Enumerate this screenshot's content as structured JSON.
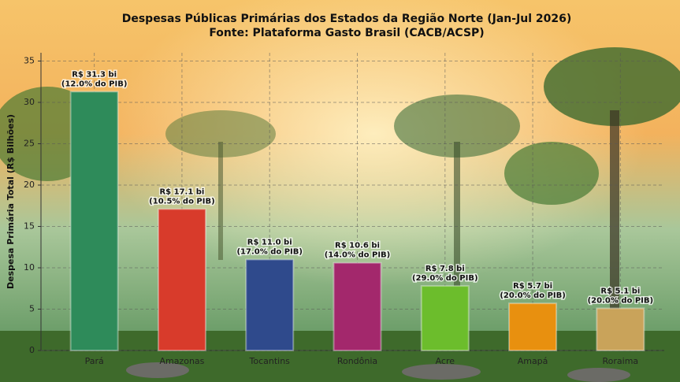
{
  "chart_data": {
    "type": "bar",
    "title": "Despesas Públicas Primárias dos Estados da Região Norte (Jan-Jul 2026)",
    "subtitle": "Fonte: Plataforma Gasto Brasil (CACB/ACSP)",
    "y_label": "Despesa Primária Total (R$ Bilhões)",
    "categories": [
      "Pará",
      "Amazonas",
      "Tocantins",
      "Rondônia",
      "Acre",
      "Amapá",
      "Roraima"
    ],
    "values": [
      31.3,
      17.1,
      11.0,
      10.6,
      7.8,
      5.7,
      5.1
    ],
    "value_labels": [
      "R$ 31.3 bi",
      "R$ 17.1 bi",
      "R$ 11.0 bi",
      "R$ 10.6 bi",
      "R$ 7.8 bi",
      "R$ 5.7 bi",
      "R$ 5.1 bi"
    ],
    "pib_share_labels": [
      "(12.0% do PIB)",
      "(10.5% do PIB)",
      "(17.0% do PIB)",
      "(14.0% do PIB)",
      "(29.0% do PIB)",
      "(20.0% do PIB)",
      "(20.0% do PIB)"
    ],
    "colors": [
      "#2e8b5a",
      "#d83b2b",
      "#2f4a8c",
      "#a3286c",
      "#6cbd2c",
      "#e8900f",
      "#c9a35a"
    ],
    "ylim": [
      0,
      36
    ],
    "yticks": [
      0,
      5,
      10,
      15,
      20,
      25,
      30,
      35
    ],
    "grid": true
  }
}
